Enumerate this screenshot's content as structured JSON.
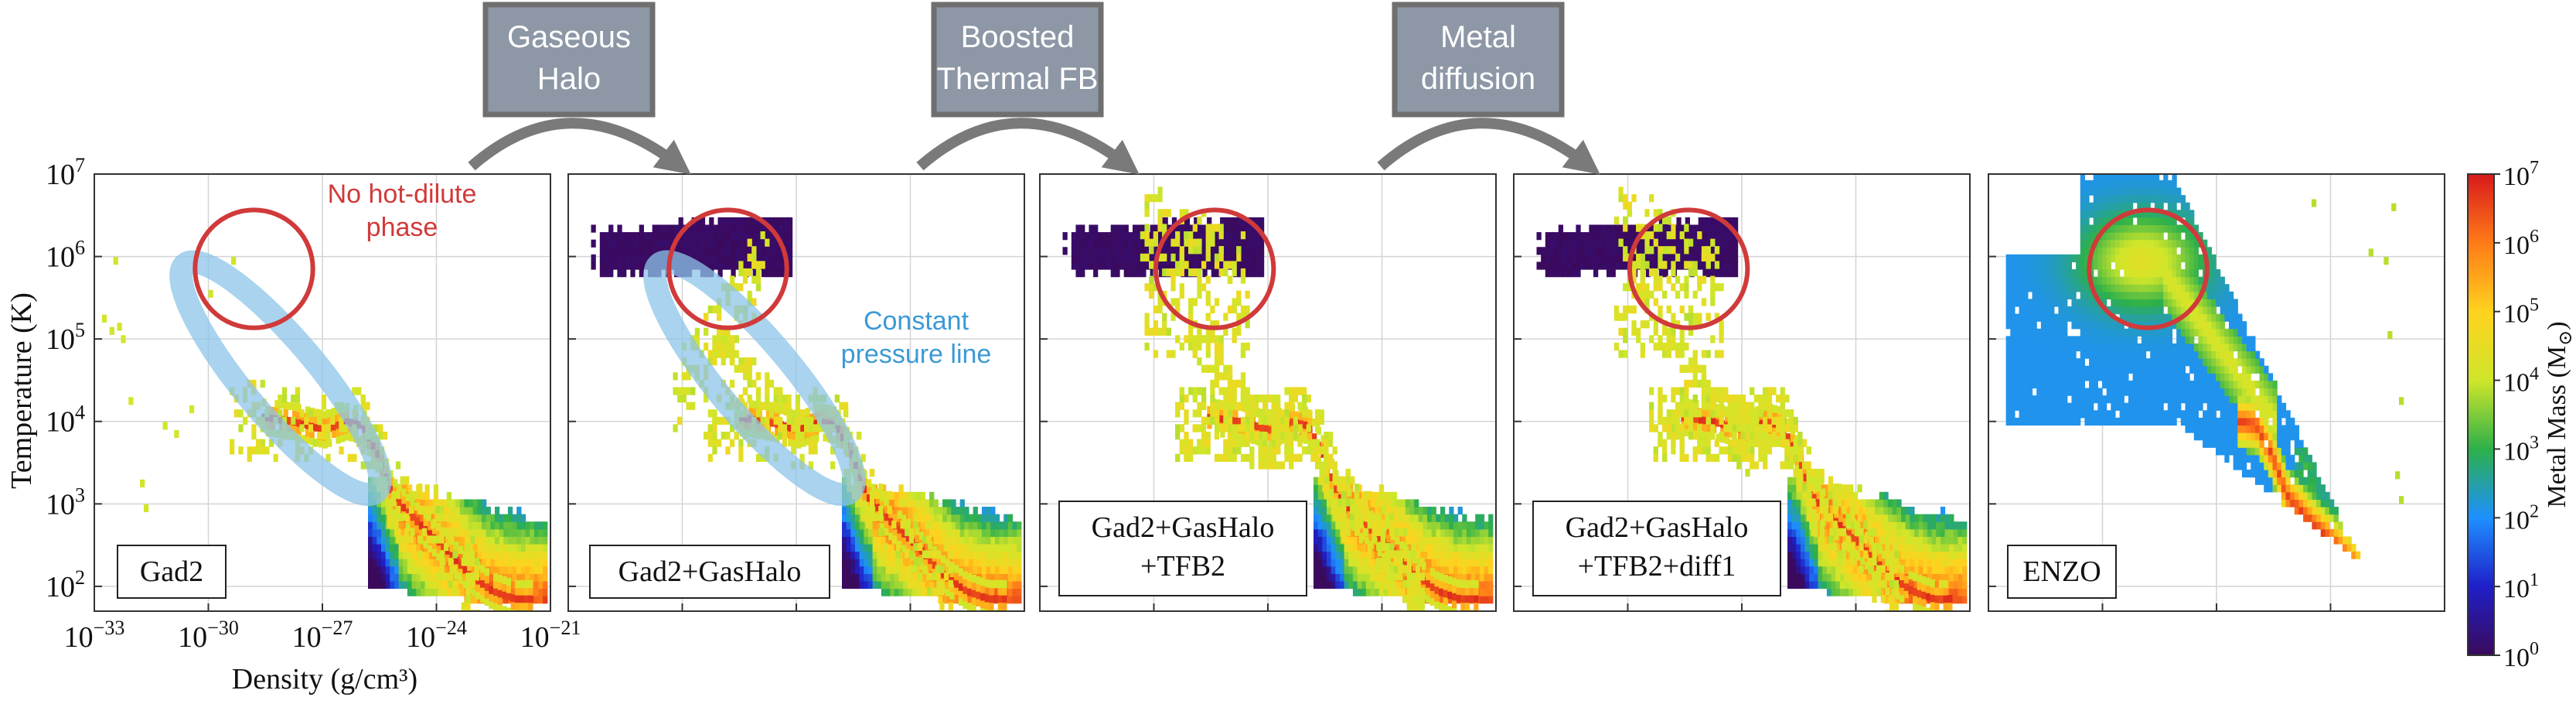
{
  "chart_data": {
    "type": "heatmap",
    "xlabel": "Density (g/cm³)",
    "ylabel": "Temperature (K)",
    "xlim": [
      1e-33,
      1e-21
    ],
    "ylim": [
      50,
      10000000.0
    ],
    "x_scale": "log",
    "y_scale": "log",
    "grid": true,
    "x_ticks": [
      {
        "value": 1e-33,
        "base": "10",
        "exp": "−33"
      },
      {
        "value": 1e-30,
        "base": "10",
        "exp": "−30"
      },
      {
        "value": 1e-27,
        "base": "10",
        "exp": "−27"
      },
      {
        "value": 1e-24,
        "base": "10",
        "exp": "−24"
      },
      {
        "value": 1e-21,
        "base": "10",
        "exp": "−21"
      }
    ],
    "y_ticks": [
      {
        "value": 100.0,
        "base": "10",
        "exp": "2"
      },
      {
        "value": 1000.0,
        "base": "10",
        "exp": "3"
      },
      {
        "value": 10000.0,
        "base": "10",
        "exp": "4"
      },
      {
        "value": 100000.0,
        "base": "10",
        "exp": "5"
      },
      {
        "value": 1000000.0,
        "base": "10",
        "exp": "6"
      },
      {
        "value": 10000000.0,
        "base": "10",
        "exp": "7"
      }
    ],
    "colorbar": {
      "label": "Metal Mass (M",
      "label_sub": "⊙",
      "label_close": ")",
      "scale": "log",
      "range": [
        1,
        10000000.0
      ],
      "colormap": [
        "#3b0a5c",
        "#1f1fc8",
        "#1e90ff",
        "#2db04a",
        "#cfe62a",
        "#ffd21e",
        "#ff7a18",
        "#d7191c"
      ],
      "ticks": [
        {
          "value": 1.0,
          "base": "10",
          "exp": "0"
        },
        {
          "value": 10.0,
          "base": "10",
          "exp": "1"
        },
        {
          "value": 100.0,
          "base": "10",
          "exp": "2"
        },
        {
          "value": 1000.0,
          "base": "10",
          "exp": "3"
        },
        {
          "value": 10000.0,
          "base": "10",
          "exp": "4"
        },
        {
          "value": 100000.0,
          "base": "10",
          "exp": "5"
        },
        {
          "value": 1000000.0,
          "base": "10",
          "exp": "6"
        },
        {
          "value": 10000000.0,
          "base": "10",
          "exp": "7"
        }
      ]
    },
    "panels": [
      {
        "label": "Gad2",
        "halo": false,
        "hot_diffuse": false,
        "enzo": false,
        "red_circle": {
          "logrho": -28.8,
          "logT": 5.85,
          "r": 1.55
        },
        "blue_ellipse": true
      },
      {
        "label": "Gad2+GasHalo",
        "halo": true,
        "hot_diffuse": false,
        "enzo": false,
        "red_circle": {
          "logrho": -28.8,
          "logT": 5.85,
          "r": 1.55
        },
        "blue_ellipse": true
      },
      {
        "label": "Gad2+GasHalo\n+TFB2",
        "halo": true,
        "hot_diffuse": true,
        "enzo": false,
        "red_circle": {
          "logrho": -28.4,
          "logT": 5.85,
          "r": 1.55
        },
        "blue_ellipse": false
      },
      {
        "label": "Gad2+GasHalo\n+TFB2+diff1",
        "halo": true,
        "hot_diffuse": true,
        "enzo": false,
        "red_circle": {
          "logrho": -28.4,
          "logT": 5.85,
          "r": 1.55
        },
        "blue_ellipse": false
      },
      {
        "label": "ENZO",
        "halo": false,
        "hot_diffuse": false,
        "enzo": true,
        "red_circle": {
          "logrho": -28.8,
          "logT": 5.85,
          "r": 1.55
        },
        "blue_ellipse": false
      }
    ],
    "transitions": [
      {
        "label": [
          "Gaseous",
          "Halo"
        ]
      },
      {
        "label": [
          "Boosted",
          "Thermal FB"
        ]
      },
      {
        "label": [
          "Metal",
          "diffusion"
        ]
      }
    ],
    "annotations": {
      "no_hot_dilute": [
        "No hot-dilute",
        "phase"
      ],
      "constant_pressure": [
        "Constant",
        "pressure line"
      ]
    },
    "colors": {
      "red_circle": "#d03a3a",
      "blue_ellipse": "#8cc4e8",
      "blue_text": "#3b9ad6",
      "box_fill": "#8d97a6",
      "box_border": "#6f6f6f",
      "arrow": "#7a7a7a"
    }
  }
}
